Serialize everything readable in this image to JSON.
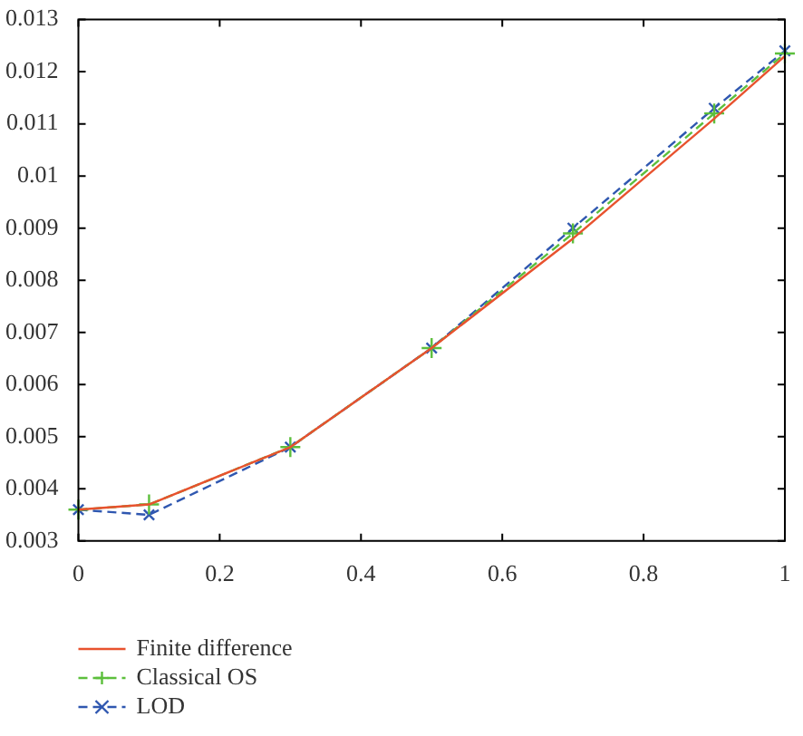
{
  "chart_data": {
    "type": "line",
    "x": [
      0,
      0.1,
      0.3,
      0.5,
      0.7,
      0.9,
      1
    ],
    "series": [
      {
        "name": "Finite difference",
        "color": "#e8522e",
        "line_style": "solid",
        "marker": "none",
        "values": [
          0.0036,
          0.0037,
          0.0048,
          0.0067,
          0.0088,
          0.0111,
          0.0123
        ]
      },
      {
        "name": "Classical OS",
        "color": "#5cbf3c",
        "line_style": "dashed",
        "marker": "cross",
        "values": [
          0.0036,
          0.0037,
          0.0048,
          0.0067,
          0.0089,
          0.0112,
          0.01235
        ]
      },
      {
        "name": "LOD",
        "color": "#2f57b0",
        "line_style": "dashed",
        "marker": "x",
        "values": [
          0.0036,
          0.0035,
          0.0048,
          0.0067,
          0.009,
          0.0113,
          0.0124
        ]
      }
    ],
    "xlim": [
      0,
      1
    ],
    "xticks": [
      0,
      0.2,
      0.4,
      0.6,
      0.8,
      1
    ],
    "ylim": [
      0.003,
      0.013
    ],
    "yticks": [
      0.003,
      0.004,
      0.005,
      0.006,
      0.007,
      0.008,
      0.009,
      0.01,
      0.011,
      0.012,
      0.013
    ],
    "grid": false,
    "legend": "bottom left"
  }
}
